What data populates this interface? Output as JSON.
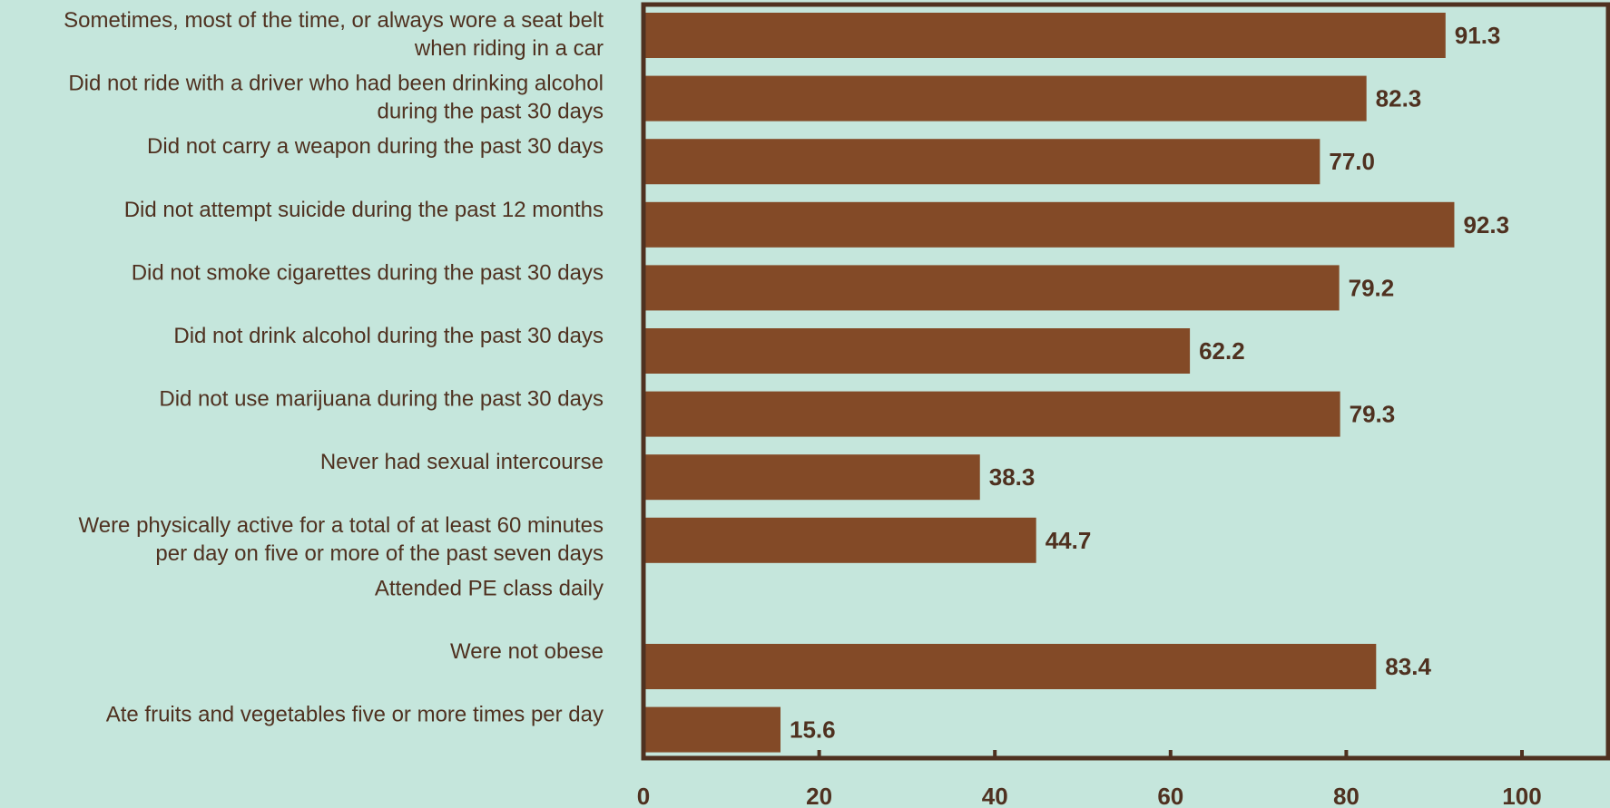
{
  "chart_data": {
    "type": "bar",
    "orientation": "horizontal",
    "title": "",
    "xlabel": "",
    "ylabel": "",
    "xlim": [
      0,
      100
    ],
    "xticks": [
      "0",
      "20",
      "40",
      "60",
      "80",
      "100"
    ],
    "grid": false,
    "categories": [
      [
        "Sometimes, most of the time, or always wore a seat belt",
        "when riding in a car"
      ],
      [
        "Did not ride with a driver who had been drinking alcohol",
        "during the past 30 days"
      ],
      [
        "Did not carry a weapon during the past 30 days"
      ],
      [
        "Did not attempt suicide during the past 12 months"
      ],
      [
        "Did not smoke cigarettes during the past 30 days"
      ],
      [
        "Did not drink alcohol during the past 30 days"
      ],
      [
        "Did not use marijuana during the past 30 days"
      ],
      [
        "Never had sexual intercourse"
      ],
      [
        "Were physically active for a total of at least 60 minutes",
        "per day on five or more of the past seven days"
      ],
      [
        "Attended PE class daily"
      ],
      [
        "Were not obese"
      ],
      [
        "Ate fruits and vegetables five or more times per day"
      ]
    ],
    "values": [
      91.3,
      82.3,
      77.0,
      92.3,
      79.2,
      62.2,
      79.3,
      38.3,
      44.7,
      null,
      83.4,
      15.6
    ],
    "value_labels": [
      "91.3",
      "82.3",
      "77.0",
      "92.3",
      "79.2",
      "62.2",
      "79.3",
      "38.3",
      "44.7",
      "",
      "83.4",
      "15.6"
    ],
    "colors": {
      "bar": "#834a27",
      "axis": "#4f3120",
      "text": "#4f3120",
      "background": "#c5e6dc"
    }
  }
}
